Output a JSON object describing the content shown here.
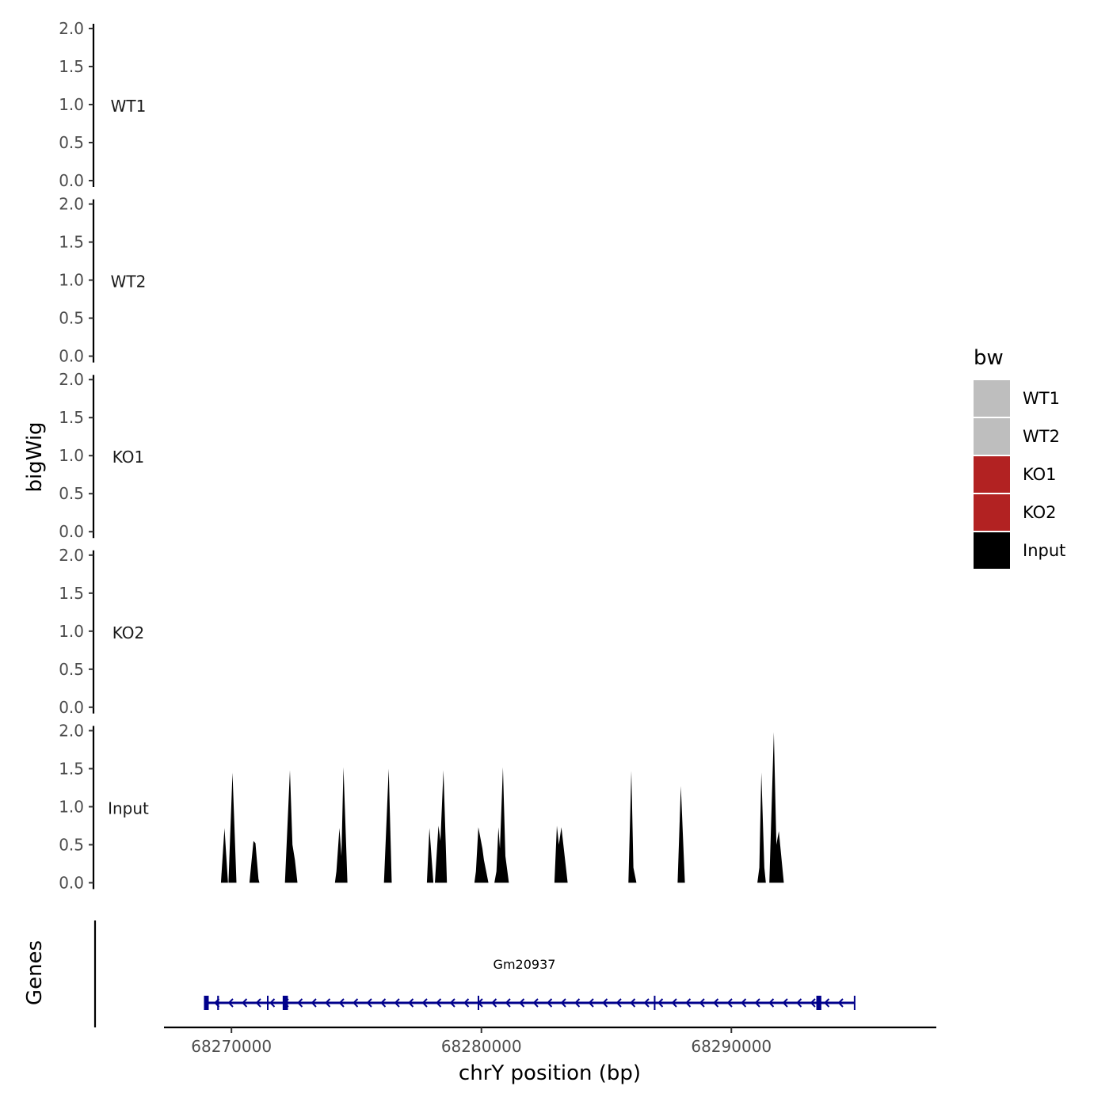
{
  "chart_data": {
    "type": "area",
    "ylabel": "bigWig",
    "xlabel": "chrY position (bp)",
    "chromosome": "chrY",
    "xlim": [
      68267300,
      68298200
    ],
    "ylim": [
      0,
      2.0
    ],
    "yticks": [
      0.0,
      0.5,
      1.0,
      1.5,
      2.0
    ],
    "ytick_labels": [
      "0.0",
      "0.5",
      "1.0",
      "1.5",
      "2.0"
    ],
    "xticks": [
      68270000,
      68280000,
      68290000
    ],
    "xtick_labels": [
      "68270000",
      "68280000",
      "68290000"
    ],
    "tracks": [
      {
        "name": "WT1",
        "color": "#bebebe",
        "points": []
      },
      {
        "name": "WT2",
        "color": "#bebebe",
        "points": []
      },
      {
        "name": "KO1",
        "color": "#b22222",
        "points": []
      },
      {
        "name": "KO2",
        "color": "#b22222",
        "points": []
      },
      {
        "name": "Input",
        "color": "#000000",
        "points": [
          [
            68269580,
            0
          ],
          [
            68269720,
            0.72
          ],
          [
            68269860,
            0
          ],
          [
            68269880,
            0
          ],
          [
            68270040,
            1.45
          ],
          [
            68270200,
            0
          ],
          [
            68270720,
            0
          ],
          [
            68270880,
            0.55
          ],
          [
            68270960,
            0.52
          ],
          [
            68271080,
            0.05
          ],
          [
            68271120,
            0
          ],
          [
            68272140,
            0
          ],
          [
            68272340,
            1.48
          ],
          [
            68272440,
            0.5
          ],
          [
            68272540,
            0.3
          ],
          [
            68272640,
            0
          ],
          [
            68274140,
            0
          ],
          [
            68274200,
            0.15
          ],
          [
            68274320,
            0.72
          ],
          [
            68274400,
            0.35
          ],
          [
            68274480,
            1.52
          ],
          [
            68274640,
            0
          ],
          [
            68276100,
            0
          ],
          [
            68276290,
            1.5
          ],
          [
            68276410,
            0
          ],
          [
            68277820,
            0
          ],
          [
            68277920,
            0.72
          ],
          [
            68278080,
            0
          ],
          [
            68278140,
            0
          ],
          [
            68278280,
            0.75
          ],
          [
            68278360,
            0.55
          ],
          [
            68278480,
            1.48
          ],
          [
            68278620,
            0
          ],
          [
            68279720,
            0
          ],
          [
            68279780,
            0.15
          ],
          [
            68279880,
            0.73
          ],
          [
            68280040,
            0.45
          ],
          [
            68280100,
            0.3
          ],
          [
            68280280,
            0
          ],
          [
            68280520,
            0
          ],
          [
            68280600,
            0.15
          ],
          [
            68280680,
            0.73
          ],
          [
            68280740,
            0.45
          ],
          [
            68280860,
            1.52
          ],
          [
            68280960,
            0.35
          ],
          [
            68281100,
            0
          ],
          [
            68282920,
            0
          ],
          [
            68283020,
            0.75
          ],
          [
            68283100,
            0.5
          ],
          [
            68283200,
            0.73
          ],
          [
            68283450,
            0
          ],
          [
            68285880,
            0
          ],
          [
            68286000,
            1.47
          ],
          [
            68286080,
            0.2
          ],
          [
            68286200,
            0
          ],
          [
            68287850,
            0
          ],
          [
            68287980,
            1.27
          ],
          [
            68288140,
            0
          ],
          [
            68291040,
            0
          ],
          [
            68291120,
            0.2
          ],
          [
            68291200,
            1.45
          ],
          [
            68291320,
            0.2
          ],
          [
            68291380,
            0
          ],
          [
            68291520,
            0
          ],
          [
            68291700,
            1.98
          ],
          [
            68291800,
            0.5
          ],
          [
            68291900,
            0.68
          ],
          [
            68292100,
            0
          ]
        ]
      }
    ],
    "legend": {
      "title": "bw",
      "placement": "right",
      "entries": [
        {
          "label": "WT1",
          "color": "#bebebe"
        },
        {
          "label": "WT2",
          "color": "#bebebe"
        },
        {
          "label": "KO1",
          "color": "#b22222"
        },
        {
          "label": "KO2",
          "color": "#b22222"
        },
        {
          "label": "Input",
          "color": "#000000"
        }
      ]
    },
    "genes_panel": {
      "label": "Genes",
      "color": "#00008b",
      "genes": [
        {
          "name": "Gm20937",
          "start": 68268900,
          "end": 68294950,
          "strand": "-",
          "exons": [
            [
              68268900,
              68269090
            ],
            [
              68269430,
              68269500
            ],
            [
              68271420,
              68271480
            ],
            [
              68272050,
              68272260
            ],
            [
              68279850,
              68279890
            ],
            [
              68286900,
              68286940
            ],
            [
              68293400,
              68293600
            ],
            [
              68294900,
              68294950
            ]
          ]
        }
      ]
    }
  }
}
